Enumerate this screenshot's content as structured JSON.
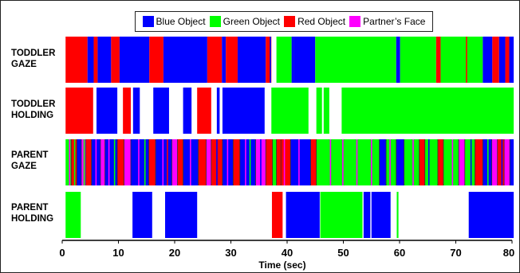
{
  "colors": {
    "blue": "#0000ff",
    "green": "#00ff00",
    "red": "#ff0000",
    "magenta": "#ff00ff"
  },
  "legend": [
    {
      "label": "Blue Object",
      "color": "#0000ff"
    },
    {
      "label": "Green Object",
      "color": "#00ff00"
    },
    {
      "label": "Red Object",
      "color": "#ff0000"
    },
    {
      "label": "Partner’s Face",
      "color": "#ff00ff"
    }
  ],
  "rows": [
    {
      "label_line1": "TODDLER",
      "label_line2": "GAZE"
    },
    {
      "label_line1": "TODDLER",
      "label_line2": "HOLDING"
    },
    {
      "label_line1": "PARENT",
      "label_line2": "GAZE"
    },
    {
      "label_line1": "PARENT",
      "label_line2": "HOLDING"
    }
  ],
  "chart_data": {
    "type": "timeline",
    "xlabel": "Time (sec)",
    "xlim": [
      0,
      80
    ],
    "xticks": [
      0,
      10,
      20,
      30,
      40,
      50,
      60,
      70,
      80
    ],
    "tracks": [
      {
        "name": "TODDLER GAZE",
        "segments": [
          {
            "start": 0.6,
            "end": 4.5,
            "color": "red"
          },
          {
            "start": 4.5,
            "end": 5.6,
            "color": "blue"
          },
          {
            "start": 5.6,
            "end": 6.3,
            "color": "red"
          },
          {
            "start": 6.3,
            "end": 8.7,
            "color": "blue"
          },
          {
            "start": 8.7,
            "end": 10.2,
            "color": "red"
          },
          {
            "start": 10.2,
            "end": 15.5,
            "color": "blue"
          },
          {
            "start": 15.5,
            "end": 18.0,
            "color": "red"
          },
          {
            "start": 18.0,
            "end": 25.8,
            "color": "blue"
          },
          {
            "start": 25.8,
            "end": 28.4,
            "color": "red"
          },
          {
            "start": 28.4,
            "end": 29.1,
            "color": "blue"
          },
          {
            "start": 29.1,
            "end": 31.2,
            "color": "red"
          },
          {
            "start": 31.2,
            "end": 36.2,
            "color": "blue"
          },
          {
            "start": 36.2,
            "end": 37.2,
            "color": "red"
          },
          {
            "start": 38.1,
            "end": 40.8,
            "color": "green"
          },
          {
            "start": 40.8,
            "end": 41.2,
            "color": "blue"
          },
          {
            "start": 41.2,
            "end": 45.0,
            "color": "blue"
          },
          {
            "start": 45.0,
            "end": 59.4,
            "color": "green"
          },
          {
            "start": 59.4,
            "end": 60.1,
            "color": "blue"
          },
          {
            "start": 60.1,
            "end": 66.5,
            "color": "green"
          },
          {
            "start": 66.5,
            "end": 67.3,
            "color": "red"
          },
          {
            "start": 67.3,
            "end": 74.8,
            "color": "green"
          },
          {
            "start": 74.8,
            "end": 76.5,
            "color": "blue"
          },
          {
            "start": 76.5,
            "end": 77.7,
            "color": "red"
          },
          {
            "start": 77.7,
            "end": 78.8,
            "color": "blue"
          },
          {
            "start": 78.8,
            "end": 79.5,
            "color": "red"
          },
          {
            "start": 79.5,
            "end": 80.3,
            "color": "blue"
          }
        ]
      },
      {
        "name": "TODDLER HOLDING",
        "segments": [
          {
            "start": 0.6,
            "end": 5.5,
            "color": "red"
          },
          {
            "start": 6.1,
            "end": 9.8,
            "color": "blue"
          },
          {
            "start": 10.8,
            "end": 12.2,
            "color": "red"
          },
          {
            "start": 12.6,
            "end": 13.8,
            "color": "blue"
          },
          {
            "start": 16.2,
            "end": 19.0,
            "color": "blue"
          },
          {
            "start": 21.5,
            "end": 23.0,
            "color": "blue"
          },
          {
            "start": 24.0,
            "end": 26.5,
            "color": "red"
          },
          {
            "start": 27.5,
            "end": 28.0,
            "color": "blue"
          },
          {
            "start": 28.5,
            "end": 36.0,
            "color": "blue"
          },
          {
            "start": 37.2,
            "end": 43.8,
            "color": "green"
          },
          {
            "start": 45.2,
            "end": 46.2,
            "color": "green"
          },
          {
            "start": 46.5,
            "end": 47.5,
            "color": "green"
          },
          {
            "start": 49.7,
            "end": 80.3,
            "color": "green"
          }
        ]
      },
      {
        "name": "PARENT GAZE",
        "segments": [
          {
            "start": 0.6,
            "end": 1.6,
            "color": "green"
          },
          {
            "start": 1.6,
            "end": 2.6,
            "color": "red"
          },
          {
            "start": 2.6,
            "end": 3.4,
            "color": "blue"
          },
          {
            "start": 3.4,
            "end": 4.2,
            "color": "magenta"
          },
          {
            "start": 4.2,
            "end": 5.2,
            "color": "red"
          },
          {
            "start": 5.2,
            "end": 6.8,
            "color": "blue"
          },
          {
            "start": 6.8,
            "end": 7.6,
            "color": "magenta"
          },
          {
            "start": 7.6,
            "end": 9.8,
            "color": "blue"
          },
          {
            "start": 9.8,
            "end": 11.0,
            "color": "red"
          },
          {
            "start": 11.0,
            "end": 12.2,
            "color": "magenta"
          },
          {
            "start": 12.2,
            "end": 15.4,
            "color": "blue"
          },
          {
            "start": 15.4,
            "end": 16.6,
            "color": "red"
          },
          {
            "start": 16.6,
            "end": 19.5,
            "color": "blue"
          },
          {
            "start": 19.5,
            "end": 20.5,
            "color": "magenta"
          },
          {
            "start": 20.5,
            "end": 21.5,
            "color": "red"
          },
          {
            "start": 21.5,
            "end": 24.2,
            "color": "blue"
          },
          {
            "start": 24.2,
            "end": 25.6,
            "color": "red"
          },
          {
            "start": 25.6,
            "end": 26.5,
            "color": "magenta"
          },
          {
            "start": 26.5,
            "end": 28.5,
            "color": "red"
          },
          {
            "start": 28.5,
            "end": 30.4,
            "color": "blue"
          },
          {
            "start": 30.4,
            "end": 31.6,
            "color": "red"
          },
          {
            "start": 31.6,
            "end": 34.4,
            "color": "blue"
          },
          {
            "start": 34.4,
            "end": 36.2,
            "color": "magenta"
          },
          {
            "start": 36.2,
            "end": 37.4,
            "color": "red"
          },
          {
            "start": 37.4,
            "end": 38.1,
            "color": "green"
          },
          {
            "start": 38.1,
            "end": 38.9,
            "color": "red"
          },
          {
            "start": 38.9,
            "end": 40.6,
            "color": "red"
          },
          {
            "start": 40.6,
            "end": 44.2,
            "color": "blue"
          },
          {
            "start": 44.2,
            "end": 45.2,
            "color": "red"
          },
          {
            "start": 45.2,
            "end": 56.4,
            "color": "green"
          },
          {
            "start": 56.4,
            "end": 57.6,
            "color": "blue"
          },
          {
            "start": 57.6,
            "end": 59.4,
            "color": "green"
          },
          {
            "start": 59.4,
            "end": 60.8,
            "color": "blue"
          },
          {
            "start": 60.8,
            "end": 63.5,
            "color": "green"
          },
          {
            "start": 63.5,
            "end": 64.5,
            "color": "red"
          },
          {
            "start": 64.5,
            "end": 66.8,
            "color": "green"
          },
          {
            "start": 66.8,
            "end": 67.8,
            "color": "red"
          },
          {
            "start": 67.8,
            "end": 70.5,
            "color": "green"
          },
          {
            "start": 70.5,
            "end": 71.6,
            "color": "magenta"
          },
          {
            "start": 71.6,
            "end": 73.4,
            "color": "green"
          },
          {
            "start": 73.4,
            "end": 74.8,
            "color": "red"
          },
          {
            "start": 74.8,
            "end": 76.4,
            "color": "blue"
          },
          {
            "start": 76.4,
            "end": 77.4,
            "color": "magenta"
          },
          {
            "start": 77.4,
            "end": 78.6,
            "color": "red"
          },
          {
            "start": 78.6,
            "end": 79.6,
            "color": "magenta"
          },
          {
            "start": 79.6,
            "end": 80.3,
            "color": "blue"
          }
        ]
      },
      {
        "name": "PARENT HOLDING",
        "segments": [
          {
            "start": 0.6,
            "end": 3.3,
            "color": "green"
          },
          {
            "start": 12.5,
            "end": 16.0,
            "color": "blue"
          },
          {
            "start": 18.3,
            "end": 24.0,
            "color": "blue"
          },
          {
            "start": 37.3,
            "end": 39.2,
            "color": "red"
          },
          {
            "start": 39.8,
            "end": 45.8,
            "color": "blue"
          },
          {
            "start": 45.9,
            "end": 53.4,
            "color": "green"
          },
          {
            "start": 53.6,
            "end": 54.8,
            "color": "blue"
          },
          {
            "start": 55.0,
            "end": 58.4,
            "color": "blue"
          },
          {
            "start": 59.5,
            "end": 59.8,
            "color": "green"
          },
          {
            "start": 72.3,
            "end": 80.3,
            "color": "blue"
          }
        ]
      }
    ],
    "stripes": [
      {
        "track": 0,
        "x": 36.9,
        "color": "blue"
      },
      {
        "track": 0,
        "x": 58.7,
        "color": "green"
      },
      {
        "track": 0,
        "x": 66.2,
        "color": "green"
      },
      {
        "track": 0,
        "x": 67.8,
        "color": "green"
      },
      {
        "track": 0,
        "x": 71.8,
        "color": "red"
      },
      {
        "track": 2,
        "x": 1.2,
        "color": "magenta"
      },
      {
        "track": 2,
        "x": 2.1,
        "color": "green"
      },
      {
        "track": 2,
        "x": 3.8,
        "color": "green"
      },
      {
        "track": 2,
        "x": 5.9,
        "color": "magenta"
      },
      {
        "track": 2,
        "x": 8.2,
        "color": "magenta"
      },
      {
        "track": 2,
        "x": 9.2,
        "color": "green"
      },
      {
        "track": 2,
        "x": 13.5,
        "color": "magenta"
      },
      {
        "track": 2,
        "x": 14.6,
        "color": "green"
      },
      {
        "track": 2,
        "x": 17.8,
        "color": "magenta"
      },
      {
        "track": 2,
        "x": 18.6,
        "color": "red"
      },
      {
        "track": 2,
        "x": 22.7,
        "color": "magenta"
      },
      {
        "track": 2,
        "x": 27.4,
        "color": "blue"
      },
      {
        "track": 2,
        "x": 29.3,
        "color": "magenta"
      },
      {
        "track": 2,
        "x": 32.5,
        "color": "magenta"
      },
      {
        "track": 2,
        "x": 33.3,
        "color": "green"
      },
      {
        "track": 2,
        "x": 35.2,
        "color": "blue"
      },
      {
        "track": 2,
        "x": 39.4,
        "color": "magenta"
      },
      {
        "track": 2,
        "x": 42.0,
        "color": "magenta"
      },
      {
        "track": 2,
        "x": 47.6,
        "color": "magenta"
      },
      {
        "track": 2,
        "x": 49.8,
        "color": "magenta"
      },
      {
        "track": 2,
        "x": 52.3,
        "color": "magenta"
      },
      {
        "track": 2,
        "x": 54.9,
        "color": "magenta"
      },
      {
        "track": 2,
        "x": 58.2,
        "color": "magenta"
      },
      {
        "track": 2,
        "x": 62.3,
        "color": "magenta"
      },
      {
        "track": 2,
        "x": 65.1,
        "color": "blue"
      },
      {
        "track": 2,
        "x": 69.3,
        "color": "magenta"
      },
      {
        "track": 2,
        "x": 72.6,
        "color": "blue"
      },
      {
        "track": 2,
        "x": 75.6,
        "color": "green"
      },
      {
        "track": 2,
        "x": 78.1,
        "color": "blue"
      }
    ]
  }
}
